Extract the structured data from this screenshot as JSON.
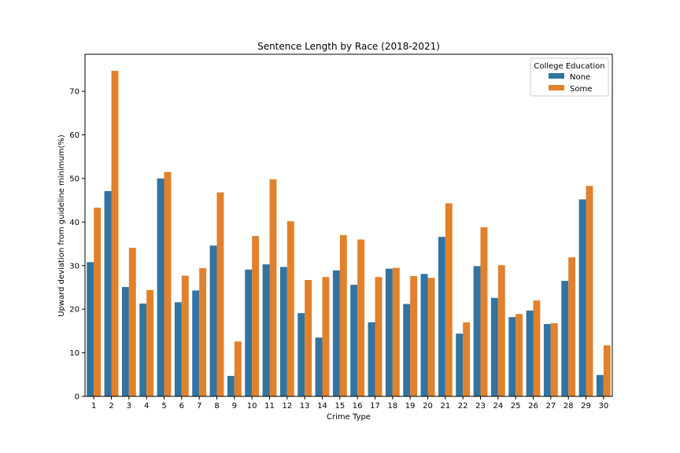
{
  "chart_data": {
    "type": "bar",
    "title": "Sentence Length by Race (2018-2021)",
    "xlabel": "Crime Type",
    "ylabel": "Upward deviation from guideline minimum(%)",
    "categories": [
      "1",
      "2",
      "3",
      "4",
      "5",
      "6",
      "7",
      "8",
      "9",
      "10",
      "11",
      "12",
      "13",
      "14",
      "15",
      "16",
      "17",
      "18",
      "19",
      "20",
      "21",
      "22",
      "23",
      "24",
      "25",
      "26",
      "27",
      "28",
      "29",
      "30"
    ],
    "series": [
      {
        "name": "None",
        "color": "#3274a1",
        "values": [
          30.8,
          47.1,
          25.1,
          21.3,
          50.0,
          21.6,
          24.3,
          34.6,
          4.7,
          29.1,
          30.3,
          29.7,
          19.1,
          13.5,
          28.9,
          25.6,
          17.0,
          29.3,
          21.2,
          28.1,
          36.6,
          14.4,
          29.9,
          22.6,
          18.2,
          19.7,
          16.6,
          26.5,
          45.2,
          4.9
        ]
      },
      {
        "name": "Some",
        "color": "#e1812c",
        "values": [
          43.3,
          74.7,
          34.1,
          24.4,
          51.5,
          27.7,
          29.4,
          46.8,
          12.6,
          36.8,
          49.8,
          40.2,
          26.7,
          27.4,
          37.0,
          36.0,
          27.4,
          29.5,
          27.6,
          27.2,
          44.3,
          17.0,
          38.8,
          30.1,
          18.9,
          22.0,
          16.8,
          31.9,
          48.3,
          11.7
        ]
      }
    ],
    "ylim": [
      0,
      78.5
    ],
    "yticks": [
      0,
      10,
      20,
      30,
      40,
      50,
      60,
      70
    ],
    "legend": {
      "title": "College Education",
      "position": "top-right"
    },
    "grid": false
  }
}
